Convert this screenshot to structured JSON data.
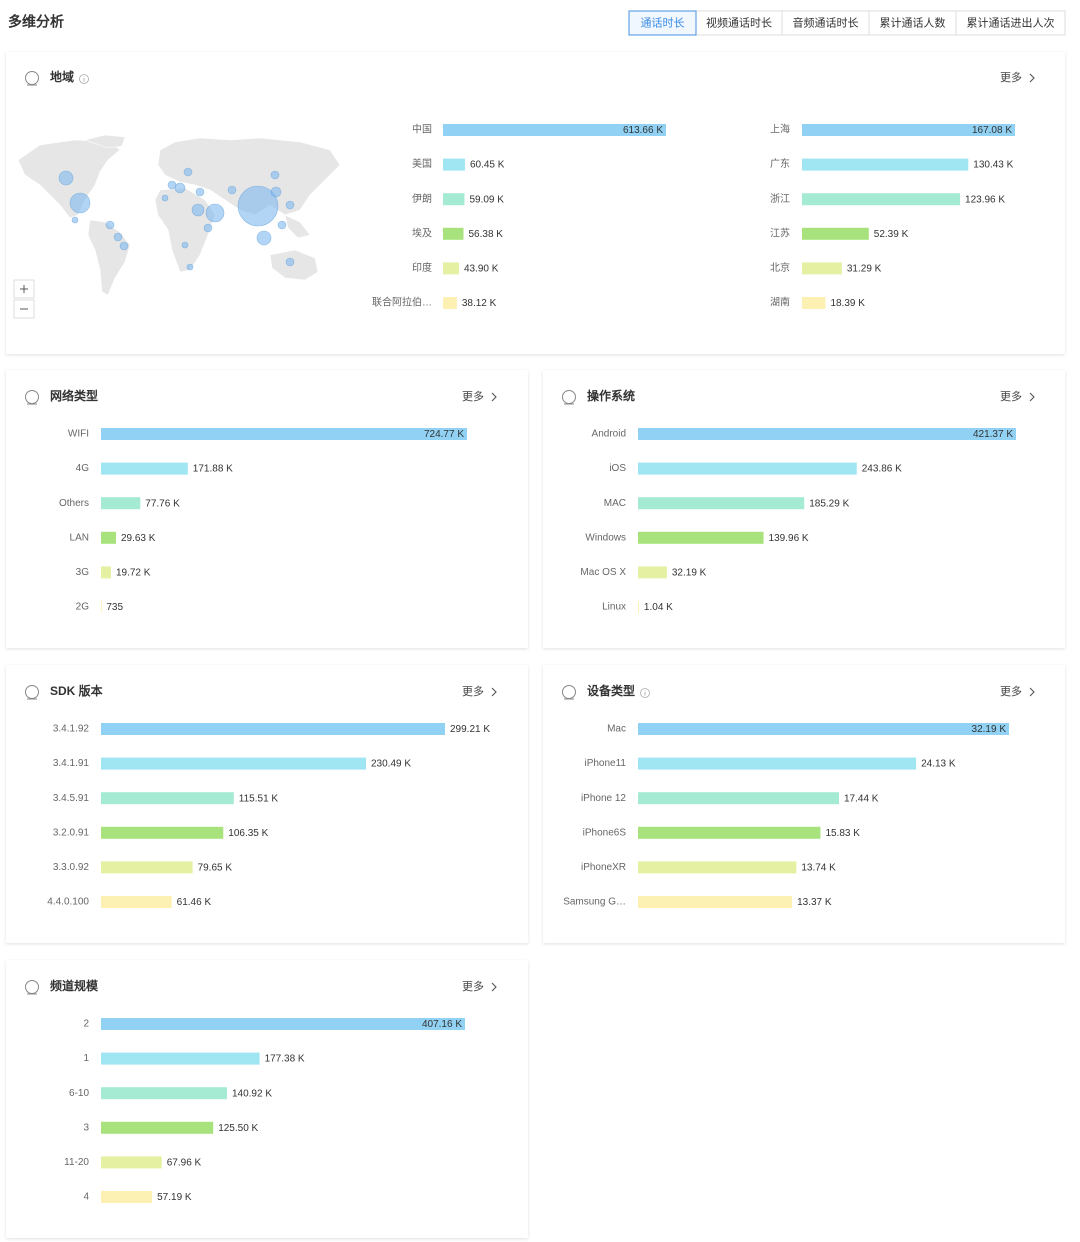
{
  "header": {
    "title": "多维分析"
  },
  "tabs": [
    {
      "label": "通话时长",
      "active": true
    },
    {
      "label": "视频通话时长",
      "active": false
    },
    {
      "label": "音频通话时长",
      "active": false
    },
    {
      "label": "累计通话人数",
      "active": false
    },
    {
      "label": "累计通话进出人次",
      "active": false
    }
  ],
  "bar_colors": [
    "#91d2f4",
    "#9fe5f2",
    "#a5ebd3",
    "#a8e27c",
    "#e5f0a2",
    "#fdf0b3"
  ],
  "panels": [
    {
      "title": "地域",
      "more": "更多",
      "charts": [
        {
          "type": "bar",
          "categories": [
            "中国",
            "美国",
            "伊朗",
            "埃及",
            "印度",
            "联合阿拉伯…"
          ],
          "values": [
            613660,
            60450,
            59090,
            56380,
            43900,
            38120
          ],
          "value_labels": [
            "613.66 K",
            "60.45 K",
            "59.09 K",
            "56.38 K",
            "43.90 K",
            "38.12 K"
          ]
        },
        {
          "type": "bar",
          "categories": [
            "上海",
            "广东",
            "浙江",
            "江苏",
            "北京",
            "湖南"
          ],
          "values": [
            167080,
            130430,
            123960,
            52390,
            31290,
            18390
          ],
          "value_labels": [
            "167.08 K",
            "130.43 K",
            "123.96 K",
            "52.39 K",
            "31.29 K",
            "18.39 K"
          ]
        }
      ]
    },
    {
      "title": "网络类型",
      "more": "更多",
      "charts": [
        {
          "type": "bar",
          "categories": [
            "WIFI",
            "4G",
            "Others",
            "LAN",
            "3G",
            "2G"
          ],
          "values": [
            724770,
            171880,
            77760,
            29630,
            19720,
            735
          ],
          "value_labels": [
            "724.77 K",
            "171.88 K",
            "77.76 K",
            "29.63 K",
            "19.72 K",
            "735"
          ]
        }
      ]
    },
    {
      "title": "操作系统",
      "more": "更多",
      "charts": [
        {
          "type": "bar",
          "categories": [
            "Android",
            "iOS",
            "MAC",
            "Windows",
            "Mac OS X",
            "Linux"
          ],
          "values": [
            421370,
            243860,
            185290,
            139960,
            32190,
            1040
          ],
          "value_labels": [
            "421.37 K",
            "243.86 K",
            "185.29 K",
            "139.96 K",
            "32.19 K",
            "1.04 K"
          ]
        }
      ]
    },
    {
      "title": "SDK 版本",
      "more": "更多",
      "charts": [
        {
          "type": "bar",
          "categories": [
            "3.4.1.92",
            "3.4.1.91",
            "3.4.5.91",
            "3.2.0.91",
            "3.3.0.92",
            "4.4.0.100"
          ],
          "values": [
            299210,
            230490,
            115510,
            106350,
            79650,
            61460
          ],
          "value_labels": [
            "299.21 K",
            "230.49 K",
            "115.51 K",
            "106.35 K",
            "79.65 K",
            "61.46 K"
          ]
        }
      ]
    },
    {
      "title": "设备类型",
      "more": "更多",
      "charts": [
        {
          "type": "bar",
          "categories": [
            "Mac",
            "iPhone11",
            "iPhone 12",
            "iPhone6S",
            "iPhoneXR",
            "Samsung G…"
          ],
          "values": [
            32190,
            24130,
            17440,
            15830,
            13740,
            13370
          ],
          "value_labels": [
            "32.19 K",
            "24.13 K",
            "17.44 K",
            "15.83 K",
            "13.74 K",
            "13.37 K"
          ]
        }
      ]
    },
    {
      "title": "频道规模",
      "more": "更多",
      "charts": [
        {
          "type": "bar",
          "categories": [
            "2",
            "1",
            "6-10",
            "3",
            "11-20",
            "4"
          ],
          "values": [
            407160,
            177380,
            140920,
            125500,
            67960,
            57190
          ],
          "value_labels": [
            "407.16 K",
            "177.38 K",
            "140.92 K",
            "125.50 K",
            "67.96 K",
            "57.19 K"
          ]
        }
      ]
    }
  ]
}
